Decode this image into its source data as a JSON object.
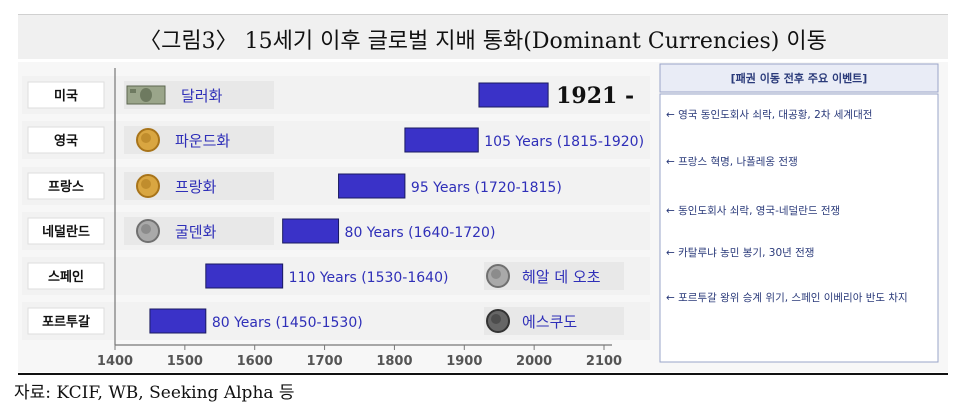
{
  "title": "〈그림3〉 15세기 이후 글로벌 지배 통화(Dominant Currencies) 이동",
  "source": "자료: KCIF, WB, Seeking Alpha 등",
  "events_panel": {
    "header": "[패권 이동 전후 주요 이벤트]",
    "items": [
      "← 영국 동인도회사 쇠락, 대공황, 2차 세계대전",
      "← 프랑스 혁명, 나폴레옹 전쟁",
      "← 동인도회사 쇠락, 영국-네덜란드 전쟁",
      "← 카탈루냐 농민 봉기, 30년 전쟁",
      "← 포르투갈 왕위 승계 위기, 스페인 이베리아 반도 차지"
    ]
  },
  "colors": {
    "bar": "#3a32c8",
    "bar_stroke": "#1a1a60",
    "label": "#2f2fb8"
  },
  "chart_data": {
    "type": "bar",
    "orientation": "horizontal-range",
    "xlim": [
      1400,
      2100
    ],
    "xticks": [
      1400,
      1500,
      1600,
      1700,
      1800,
      1900,
      2000,
      2100
    ],
    "grid": false,
    "rows": [
      {
        "country": "미국",
        "currency": "달러화",
        "currency_icon": "dollar-banknote-icon",
        "start": 1921,
        "end": 2020,
        "label": "1921 -",
        "label_style": "big"
      },
      {
        "country": "영국",
        "currency": "파운드화",
        "currency_icon": "gold-coin-icon",
        "start": 1815,
        "end": 1920,
        "label": "105 Years (1815-1920)"
      },
      {
        "country": "프랑스",
        "currency": "프랑화",
        "currency_icon": "gold-coin-icon",
        "start": 1720,
        "end": 1815,
        "label": "95 Years (1720-1815)"
      },
      {
        "country": "네덜란드",
        "currency": "굴덴화",
        "currency_icon": "silver-coin-icon",
        "start": 1640,
        "end": 1720,
        "label": "80 Years (1640-1720)"
      },
      {
        "country": "스페인",
        "currency": "헤알 데 오초",
        "currency_icon": "silver-coin-icon",
        "start": 1530,
        "end": 1640,
        "label": "110 Years (1530-1640)",
        "currency_side": "right"
      },
      {
        "country": "포르투갈",
        "currency": "에스쿠도",
        "currency_icon": "dark-coin-icon",
        "start": 1450,
        "end": 1530,
        "label": "80 Years (1450-1530)",
        "currency_side": "right"
      }
    ]
  }
}
